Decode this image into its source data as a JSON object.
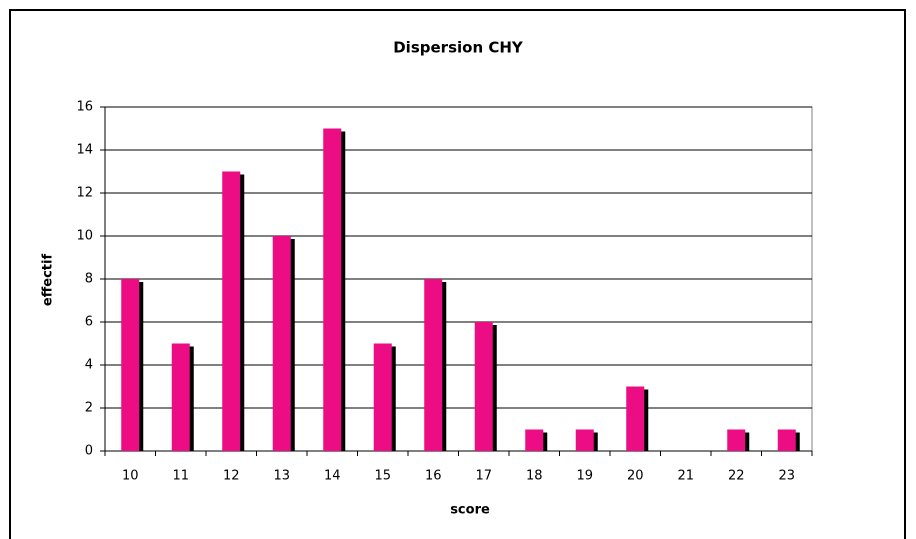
{
  "chart_data": {
    "type": "bar",
    "title": "Dispersion CHY",
    "x_label": "score",
    "y_label": "effectif",
    "categories": [
      10,
      11,
      12,
      13,
      14,
      15,
      16,
      17,
      18,
      19,
      20,
      21,
      22,
      23
    ],
    "values": [
      8,
      5,
      13,
      10,
      15,
      5,
      8,
      6,
      1,
      1,
      3,
      0,
      1,
      1
    ],
    "color": "#ec0c84",
    "ylim": [
      0,
      16
    ],
    "yticks": [
      0,
      2,
      4,
      6,
      8,
      10,
      12,
      14,
      16
    ],
    "grid": true
  }
}
